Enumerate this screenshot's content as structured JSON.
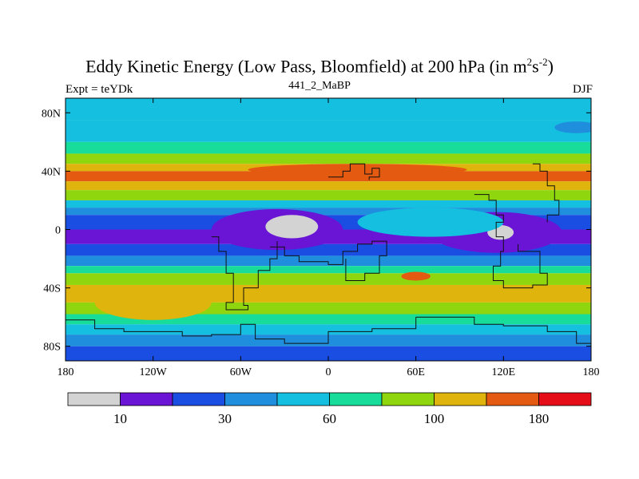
{
  "chart_data": {
    "type": "heatmap",
    "title": "Eddy Kinetic Energy (Low Pass, Bloomfield) at 200 hPa (in m",
    "title_sup1": "2",
    "title_mid": "s",
    "title_sup2": "-2",
    "title_end": ")",
    "subtitle": "441_2_MaBP",
    "left_note": "Expt = teYDk",
    "right_note": "DJF",
    "x_ticks": [
      "180",
      "120W",
      "60W",
      "0",
      "60E",
      "120E",
      "180"
    ],
    "y_ticks": [
      "80N",
      "40N",
      "0",
      "40S",
      "80S"
    ],
    "xlim": [
      -180,
      180
    ],
    "ylim": [
      -90,
      90
    ],
    "colorbar": {
      "boundaries": [
        10,
        20,
        30,
        45,
        60,
        80,
        100,
        140,
        180,
        220
      ],
      "labels": [
        "10",
        "30",
        "60",
        "100",
        "180"
      ],
      "colors": [
        "#d3d3d3",
        "#6a14d6",
        "#1a4ee3",
        "#1f8fdd",
        "#14bfe0",
        "#17dc9a",
        "#8fd60f",
        "#dfb40c",
        "#e45a10",
        "#e40d18"
      ]
    },
    "bands": [
      {
        "lat": 90,
        "level": 4
      },
      {
        "lat": 75,
        "level": 4
      },
      {
        "lat": 60,
        "level": 5
      },
      {
        "lat": 52,
        "level": 6
      },
      {
        "lat": 45,
        "level": 7
      },
      {
        "lat": 40,
        "level": 8
      },
      {
        "lat": 33,
        "level": 7
      },
      {
        "lat": 27,
        "level": 6
      },
      {
        "lat": 20,
        "level": 4
      },
      {
        "lat": 15,
        "level": 3
      },
      {
        "lat": 10,
        "level": 2
      },
      {
        "lat": 0,
        "level": 1
      },
      {
        "lat": -10,
        "level": 2
      },
      {
        "lat": -18,
        "level": 3
      },
      {
        "lat": -25,
        "level": 5
      },
      {
        "lat": -30,
        "level": 6
      },
      {
        "lat": -38,
        "level": 7
      },
      {
        "lat": -50,
        "level": 6
      },
      {
        "lat": -58,
        "level": 5
      },
      {
        "lat": -65,
        "level": 4
      },
      {
        "lat": -72,
        "level": 3
      },
      {
        "lat": -80,
        "level": 2
      },
      {
        "lat": -90,
        "level": 2
      }
    ],
    "blobs": [
      {
        "lon": 20,
        "lat": 41,
        "rlon": 75,
        "rlat": 4,
        "level": 8
      },
      {
        "lon": -35,
        "lat": 0,
        "rlon": 45,
        "rlat": 14,
        "level": 1
      },
      {
        "lon": -25,
        "lat": 2,
        "rlon": 18,
        "rlat": 8,
        "level": 0
      },
      {
        "lon": 115,
        "lat": -2,
        "rlon": 45,
        "rlat": 14,
        "level": 1
      },
      {
        "lon": 118,
        "lat": -2,
        "rlon": 9,
        "rlat": 5,
        "level": 0
      },
      {
        "lon": 70,
        "lat": 5,
        "rlon": 50,
        "rlat": 10,
        "level": 4
      },
      {
        "lon": -120,
        "lat": -50,
        "rlon": 40,
        "rlat": 12,
        "level": 7
      },
      {
        "lon": 60,
        "lat": -32,
        "rlon": 10,
        "rlat": 3,
        "level": 8
      },
      {
        "lon": 170,
        "lat": 70,
        "rlon": 15,
        "rlat": 4,
        "level": 3
      }
    ]
  }
}
